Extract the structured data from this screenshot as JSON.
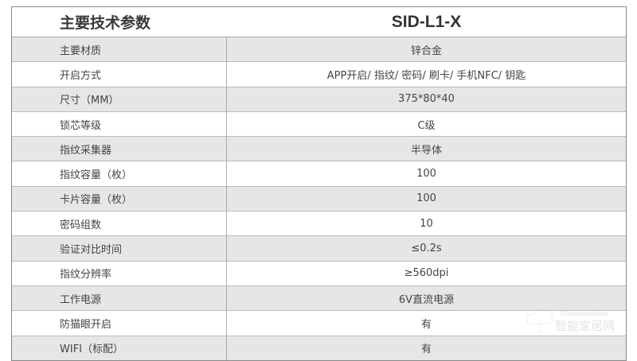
{
  "header": {
    "title": "主要技术参数",
    "model": "SID-L1-X"
  },
  "rows": [
    {
      "label": "主要材质",
      "value": "锌合金"
    },
    {
      "label": "开启方式",
      "value": "APP开启/ 指纹/ 密码/ 刷卡/ 手机NFC/ 钥匙"
    },
    {
      "label": "尺寸（MM）",
      "value": "375*80*40"
    },
    {
      "label": "锁芯等级",
      "value": "C级"
    },
    {
      "label": "指纹采集器",
      "value": "半导体"
    },
    {
      "label": "指纹容量（枚）",
      "value": "100"
    },
    {
      "label": "卡片容量（枚）",
      "value": "100"
    },
    {
      "label": "密码组数",
      "value": "10"
    },
    {
      "label": "验证对比时间",
      "value": "≤0.2s"
    },
    {
      "label": "指纹分辨率",
      "value": "≥560dpi"
    },
    {
      "label": "工作电源",
      "value": "6V直流电源"
    },
    {
      "label": "防猫眼开启",
      "value": "有"
    },
    {
      "label": "WIFI（标配）",
      "value": "有"
    }
  ],
  "watermark": {
    "text": "智能家居网",
    "domain": "Chinasmarthome.com"
  }
}
